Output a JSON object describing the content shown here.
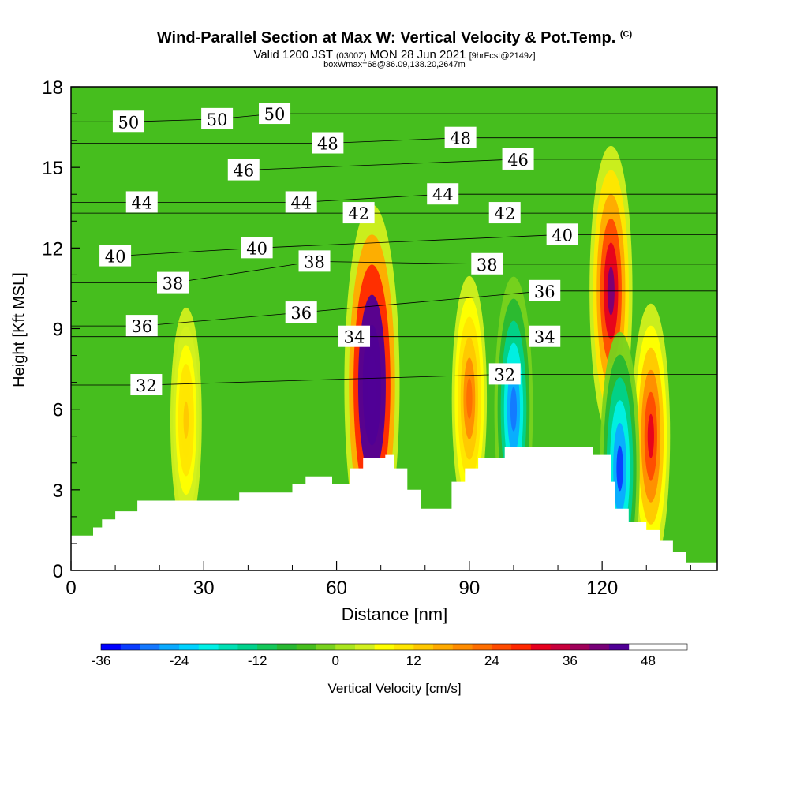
{
  "header": {
    "title": "Wind-Parallel Section at Max W: Vertical Velocity & Pot.Temp.",
    "copyright": "(C)",
    "valid_a": "Valid 1200 JST",
    "valid_b": "(0300Z)",
    "valid_c": "MON 28 Jun 2021",
    "valid_d": "[9hrFcst@2149z]",
    "boxw": "boxWmax=68@36.09,138.20,2647m"
  },
  "chart_data": {
    "type": "heatmap",
    "title": "Wind-Parallel Section at Max W: Vertical Velocity & Pot.Temp.",
    "xlabel": "Distance [nm]",
    "ylabel": "Height [Kft MSL]",
    "xlim": [
      0,
      146
    ],
    "ylim": [
      0,
      18
    ],
    "x_ticks": [
      "0",
      "30",
      "60",
      "90",
      "120"
    ],
    "y_ticks": [
      "0",
      "3",
      "6",
      "9",
      "12",
      "15",
      "18"
    ],
    "velocity_features": [
      {
        "x": 68,
        "y": 6.9,
        "w": 68
      },
      {
        "x": 122,
        "y": 10.4,
        "w": 40
      },
      {
        "x": 131,
        "y": 5.0,
        "w": 30
      },
      {
        "x": 90,
        "y": 6.4,
        "w": 22
      },
      {
        "x": 26,
        "y": 5.6,
        "w": 14
      },
      {
        "x": 100,
        "y": 6.0,
        "w": -30
      },
      {
        "x": 124,
        "y": 3.8,
        "w": -33
      }
    ],
    "theta_contours": [
      {
        "label": "50",
        "positions": [
          [
            13,
            16.7
          ],
          [
            33,
            16.8
          ],
          [
            46,
            17.0
          ]
        ]
      },
      {
        "label": "48",
        "positions": [
          [
            58,
            15.9
          ],
          [
            88,
            16.1
          ]
        ]
      },
      {
        "label": "46",
        "positions": [
          [
            39,
            14.9
          ],
          [
            101,
            15.3
          ]
        ]
      },
      {
        "label": "44",
        "positions": [
          [
            16,
            13.7
          ],
          [
            52,
            13.7
          ],
          [
            84,
            14.0
          ]
        ]
      },
      {
        "label": "42",
        "positions": [
          [
            65,
            13.3
          ],
          [
            98,
            13.3
          ]
        ]
      },
      {
        "label": "40",
        "positions": [
          [
            10,
            11.7
          ],
          [
            42,
            12.0
          ],
          [
            111,
            12.5
          ]
        ]
      },
      {
        "label": "38",
        "positions": [
          [
            23,
            10.7
          ],
          [
            55,
            11.5
          ],
          [
            94,
            11.4
          ]
        ]
      },
      {
        "label": "36",
        "positions": [
          [
            16,
            9.1
          ],
          [
            52,
            9.6
          ],
          [
            107,
            10.4
          ]
        ]
      },
      {
        "label": "34",
        "positions": [
          [
            64,
            8.7
          ],
          [
            107,
            8.7
          ]
        ]
      },
      {
        "label": "32",
        "positions": [
          [
            17,
            6.9
          ],
          [
            98,
            7.3
          ]
        ]
      }
    ],
    "colorbar": {
      "label": "Vertical Velocity [cm/s]",
      "min": -36,
      "max": 54,
      "step": 3,
      "ticks": [
        "-36",
        "-24",
        "-12",
        "0",
        "12",
        "24",
        "36",
        "48"
      ],
      "colors": [
        "#0000ff",
        "#0a3cff",
        "#1478ff",
        "#0aaaff",
        "#00d2ff",
        "#00f0e6",
        "#00e0b4",
        "#00d28c",
        "#14c85a",
        "#28b832",
        "#46be1e",
        "#78d21e",
        "#aae61e",
        "#d2f01e",
        "#ffff00",
        "#ffe600",
        "#ffc800",
        "#ffaa00",
        "#ff8c00",
        "#ff6e00",
        "#ff4b00",
        "#ff2800",
        "#e6001e",
        "#c8003c",
        "#a0005a",
        "#780078",
        "#500096"
      ]
    }
  }
}
